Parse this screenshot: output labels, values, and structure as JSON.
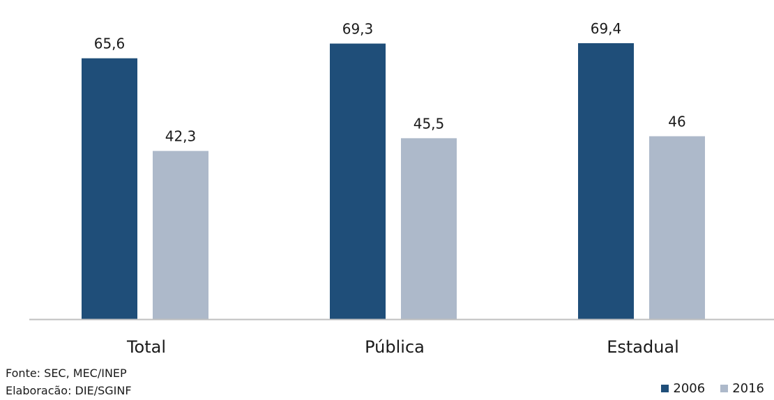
{
  "chart_data": {
    "type": "bar",
    "categories": [
      "Total",
      "Pública",
      "Estadual"
    ],
    "series": [
      {
        "name": "2006",
        "values": [
          65.6,
          69.3,
          69.4
        ],
        "labels": [
          "65,6",
          "69,3",
          "69,4"
        ],
        "color": "#1f4e79"
      },
      {
        "name": "2016",
        "values": [
          42.3,
          45.5,
          46
        ],
        "labels": [
          "42,3",
          "45,5",
          "46"
        ],
        "color": "#adb9ca"
      }
    ],
    "ylim": [
      0,
      75
    ],
    "grid": false,
    "legend_position": "bottom-right",
    "axis_color": "#bfbfbf"
  },
  "footer": {
    "source": "Fonte: SEC, MEC/INEP",
    "credit": "Elaboracão: DIE/SGINF"
  }
}
